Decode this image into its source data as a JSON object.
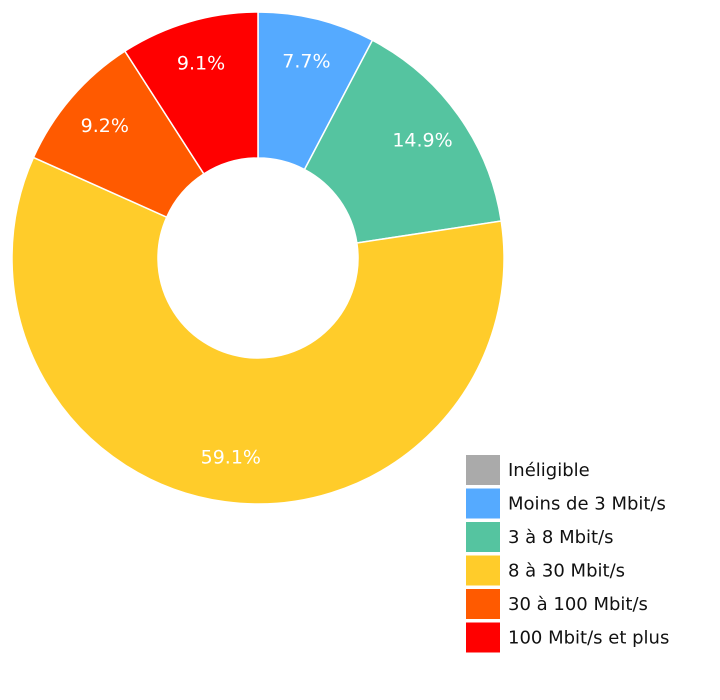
{
  "chart_data": {
    "type": "pie",
    "donut": true,
    "categories": [
      "Inéligible",
      "Moins de 3 Mbit/s",
      "3 à 8 Mbit/s",
      "8 à 30 Mbit/s",
      "30 à 100 Mbit/s",
      "100 Mbit/s et plus"
    ],
    "values": [
      0,
      7.7,
      14.9,
      59.1,
      9.2,
      9.1
    ],
    "value_labels": [
      null,
      "7.7%",
      "14.9%",
      "59.1%",
      "9.2%",
      "9.1%"
    ],
    "colors": [
      "#aaaaaa",
      "#55aaff",
      "#55c4a0",
      "#ffcc2a",
      "#ff5a00",
      "#ff0000"
    ],
    "legend": "bottom-right"
  }
}
